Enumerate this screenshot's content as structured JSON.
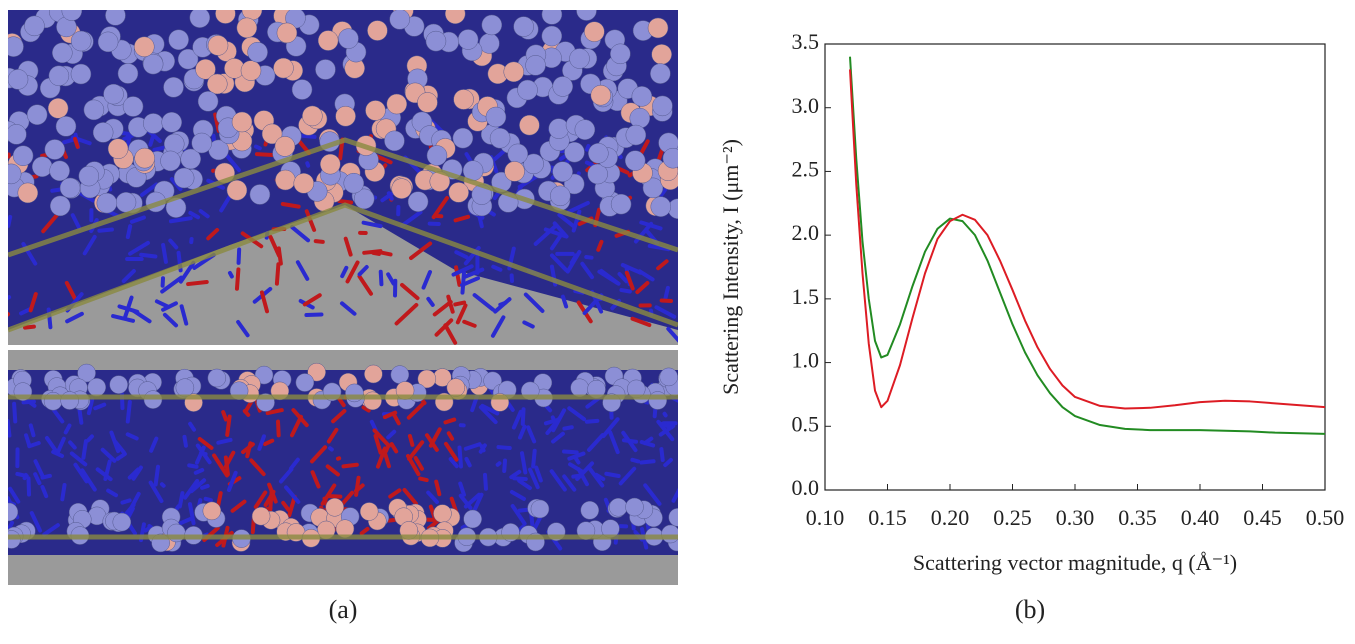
{
  "panel_labels": [
    "(a)",
    "(b)"
  ],
  "chart_data": {
    "type": "line",
    "ylabel": "Scattering Intensity, I (μm⁻²)",
    "xlabel": "Scattering vector magnitude, q (Å⁻¹)",
    "x": [
      0.12,
      0.125,
      0.13,
      0.135,
      0.14,
      0.145,
      0.15,
      0.16,
      0.17,
      0.18,
      0.19,
      0.2,
      0.21,
      0.22,
      0.23,
      0.24,
      0.25,
      0.26,
      0.27,
      0.28,
      0.29,
      0.3,
      0.32,
      0.34,
      0.36,
      0.38,
      0.4,
      0.42,
      0.44,
      0.46,
      0.48,
      0.5
    ],
    "series": [
      {
        "color": "#228b22",
        "values": [
          3.4,
          2.6,
          1.95,
          1.5,
          1.17,
          1.04,
          1.06,
          1.3,
          1.6,
          1.87,
          2.05,
          2.13,
          2.11,
          2.0,
          1.8,
          1.55,
          1.3,
          1.08,
          0.9,
          0.76,
          0.65,
          0.58,
          0.51,
          0.48,
          0.47,
          0.47,
          0.47,
          0.465,
          0.46,
          0.45,
          0.445,
          0.44
        ]
      },
      {
        "color": "#dd1c24",
        "values": [
          3.3,
          2.4,
          1.7,
          1.15,
          0.78,
          0.65,
          0.7,
          0.98,
          1.35,
          1.7,
          1.97,
          2.11,
          2.16,
          2.12,
          2.0,
          1.8,
          1.57,
          1.33,
          1.12,
          0.95,
          0.82,
          0.73,
          0.66,
          0.64,
          0.645,
          0.665,
          0.69,
          0.7,
          0.695,
          0.68,
          0.665,
          0.65
        ]
      }
    ],
    "xlim": [
      0.1,
      0.5
    ],
    "ylim": [
      0,
      3.5
    ],
    "xticks": [
      {
        "value": 0.1,
        "label": "0.10"
      },
      0.15,
      {
        "value": 0.2,
        "label": "0.20"
      },
      0.25,
      {
        "value": 0.3,
        "label": "0.30"
      },
      0.35,
      {
        "value": 0.4,
        "label": "0.40"
      },
      0.45,
      {
        "value": 0.5,
        "label": "0.50"
      }
    ],
    "yticks": [
      {
        "value": 0,
        "label": "0.0"
      },
      0.5,
      {
        "value": 1,
        "label": "1.0"
      },
      1.5,
      {
        "value": 2,
        "label": "2.0"
      },
      2.5,
      {
        "value": 3,
        "label": "3.0"
      },
      3.5
    ]
  }
}
